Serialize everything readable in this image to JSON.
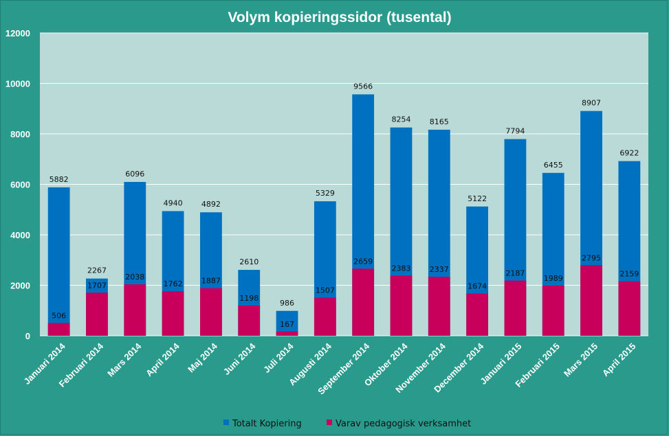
{
  "chart_data": {
    "type": "bar",
    "title": "Volym kopieringssidor (tusental)",
    "xlabel": "",
    "ylabel": "",
    "ylim": [
      0,
      12000
    ],
    "yticks": [
      "0",
      "2000",
      "4000",
      "6000",
      "8000",
      "10000",
      "12000"
    ],
    "grid": true,
    "legend_position": "bottom",
    "categories": [
      "Januari 2014",
      "Februari 2014",
      "Mars 2014",
      "April 2014",
      "Maj 2014",
      "Juni 2014",
      "Juli 2014",
      "Augusti 2014",
      "September 2014",
      "Oktober 2014",
      "November 2014",
      "December 2014",
      "Januari 2015",
      "Februari 2015",
      "Mars 2015",
      "April 2015"
    ],
    "series": [
      {
        "name": "Totalt Kopiering",
        "color": "#0070c0",
        "values": [
          5882,
          2267,
          6096,
          4940,
          4892,
          2610,
          986,
          5329,
          9566,
          8254,
          8165,
          5122,
          7794,
          6455,
          8907,
          6922
        ]
      },
      {
        "name": "Varav pedagogisk verksamhet",
        "color": "#c9005b",
        "values": [
          506,
          1707,
          2038,
          1762,
          1887,
          1198,
          167,
          1507,
          2659,
          2383,
          2337,
          1674,
          2187,
          1989,
          2795,
          2159
        ]
      }
    ],
    "colors": {
      "background": "#2a9a8d",
      "plot_background": "#b9dad6",
      "grid": "#ffffff"
    }
  }
}
